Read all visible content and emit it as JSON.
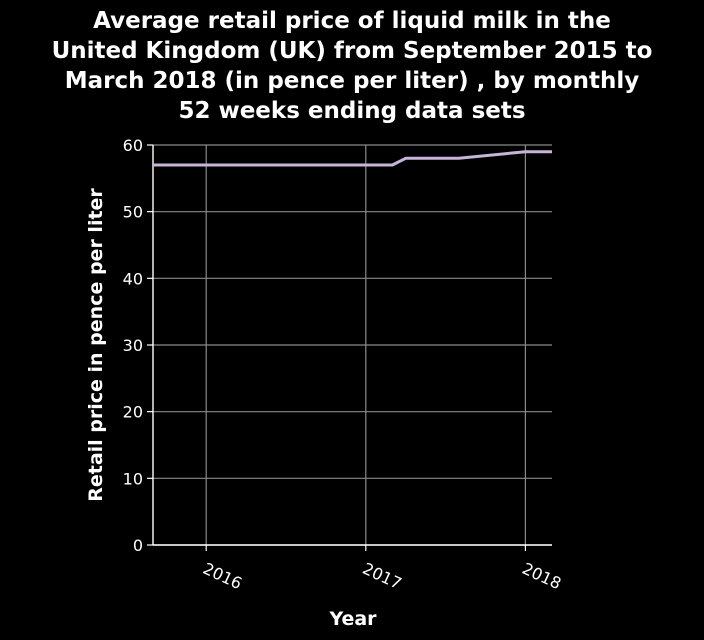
{
  "chart_data": {
    "type": "line",
    "title_lines": [
      "Average retail price of liquid milk in the",
      "United Kingdom (UK) from September 2015 to",
      "March 2018 (in pence per liter) , by monthly",
      "52 weeks ending data sets"
    ],
    "xlabel": "Year",
    "ylabel": "Retail price in pence per liter",
    "x_ticks": [
      "2016",
      "2017",
      "2018"
    ],
    "y_ticks": [
      "0",
      "10",
      "20",
      "30",
      "40",
      "50",
      "60"
    ],
    "ylim": [
      0,
      60
    ],
    "xlim": [
      "2015-09",
      "2018-03"
    ],
    "grid": true,
    "series": [
      {
        "color": "#c8b4d8",
        "points": [
          {
            "x": "2015-09",
            "y": 57
          },
          {
            "x": "2016-01",
            "y": 57
          },
          {
            "x": "2017-01",
            "y": 57
          },
          {
            "x": "2017-03",
            "y": 57
          },
          {
            "x": "2017-04",
            "y": 58
          },
          {
            "x": "2017-08",
            "y": 58
          },
          {
            "x": "2018-01",
            "y": 59
          },
          {
            "x": "2018-03",
            "y": 59
          }
        ]
      }
    ]
  }
}
